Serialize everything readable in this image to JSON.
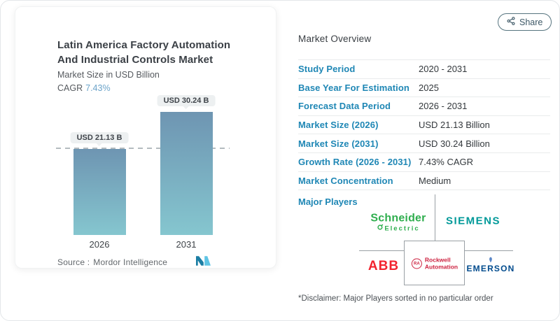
{
  "header": {
    "share_label": "Share"
  },
  "chart_panel": {
    "title_line1": "Latin America Factory Automation",
    "title_line2": "And Industrial Controls Market",
    "subtitle": "Market Size in USD Billion",
    "cagr_label": "CAGR",
    "cagr_value": "7.43%",
    "source_label": "Source :",
    "source_name": "Mordor Intelligence"
  },
  "chart_data": {
    "type": "bar",
    "title": "Latin America Factory Automation And Industrial Controls Market",
    "ylabel": "Market Size in USD Billion",
    "categories": [
      "2026",
      "2031"
    ],
    "values": [
      21.13,
      30.24
    ],
    "bar_labels": [
      "USD 21.13 B",
      "USD 30.24 B"
    ],
    "cagr_pct": 7.43,
    "reference_line": 21.13,
    "ylim": [
      0,
      35
    ],
    "grid": false,
    "legend": "none",
    "bar_color_top": "#6e95b2",
    "bar_color_bottom": "#85c6cf"
  },
  "overview": {
    "title": "Market Overview",
    "rows": [
      {
        "label": "Study Period",
        "value": "2020 - 2031"
      },
      {
        "label": "Base Year For Estimation",
        "value": "2025"
      },
      {
        "label": "Forecast Data Period",
        "value": "2026 - 2031"
      },
      {
        "label": "Market Size (2026)",
        "value": "USD 21.13 Billion"
      },
      {
        "label": "Market Size (2031)",
        "value": "USD 30.24 Billion"
      },
      {
        "label": "Growth Rate (2026 - 2031)",
        "value": "7.43% CAGR"
      },
      {
        "label": "Market Concentration",
        "value": "Medium"
      }
    ],
    "major_players_label": "Major Players",
    "players": {
      "schneider": {
        "name": "Schneider",
        "sub": "Electric",
        "color": "#2fae4e"
      },
      "siemens": {
        "name": "SIEMENS",
        "color": "#009999"
      },
      "abb": {
        "name": "ABB",
        "color": "#f2242f"
      },
      "rockwell": {
        "line1": "Rockwell",
        "line2": "Automation",
        "abbr": "RA",
        "color": "#cd2240"
      },
      "emerson": {
        "name": "EMERSON",
        "color": "#004b8d"
      }
    },
    "disclaimer": "*Disclaimer: Major Players sorted in no particular order"
  },
  "colors": {
    "accent_blue": "#1f87b5",
    "cagr_blue": "#6ba3c9",
    "divider": "#e9ebec",
    "connector": "#9aa0a5",
    "dashed_line": "#b4bbbf"
  }
}
